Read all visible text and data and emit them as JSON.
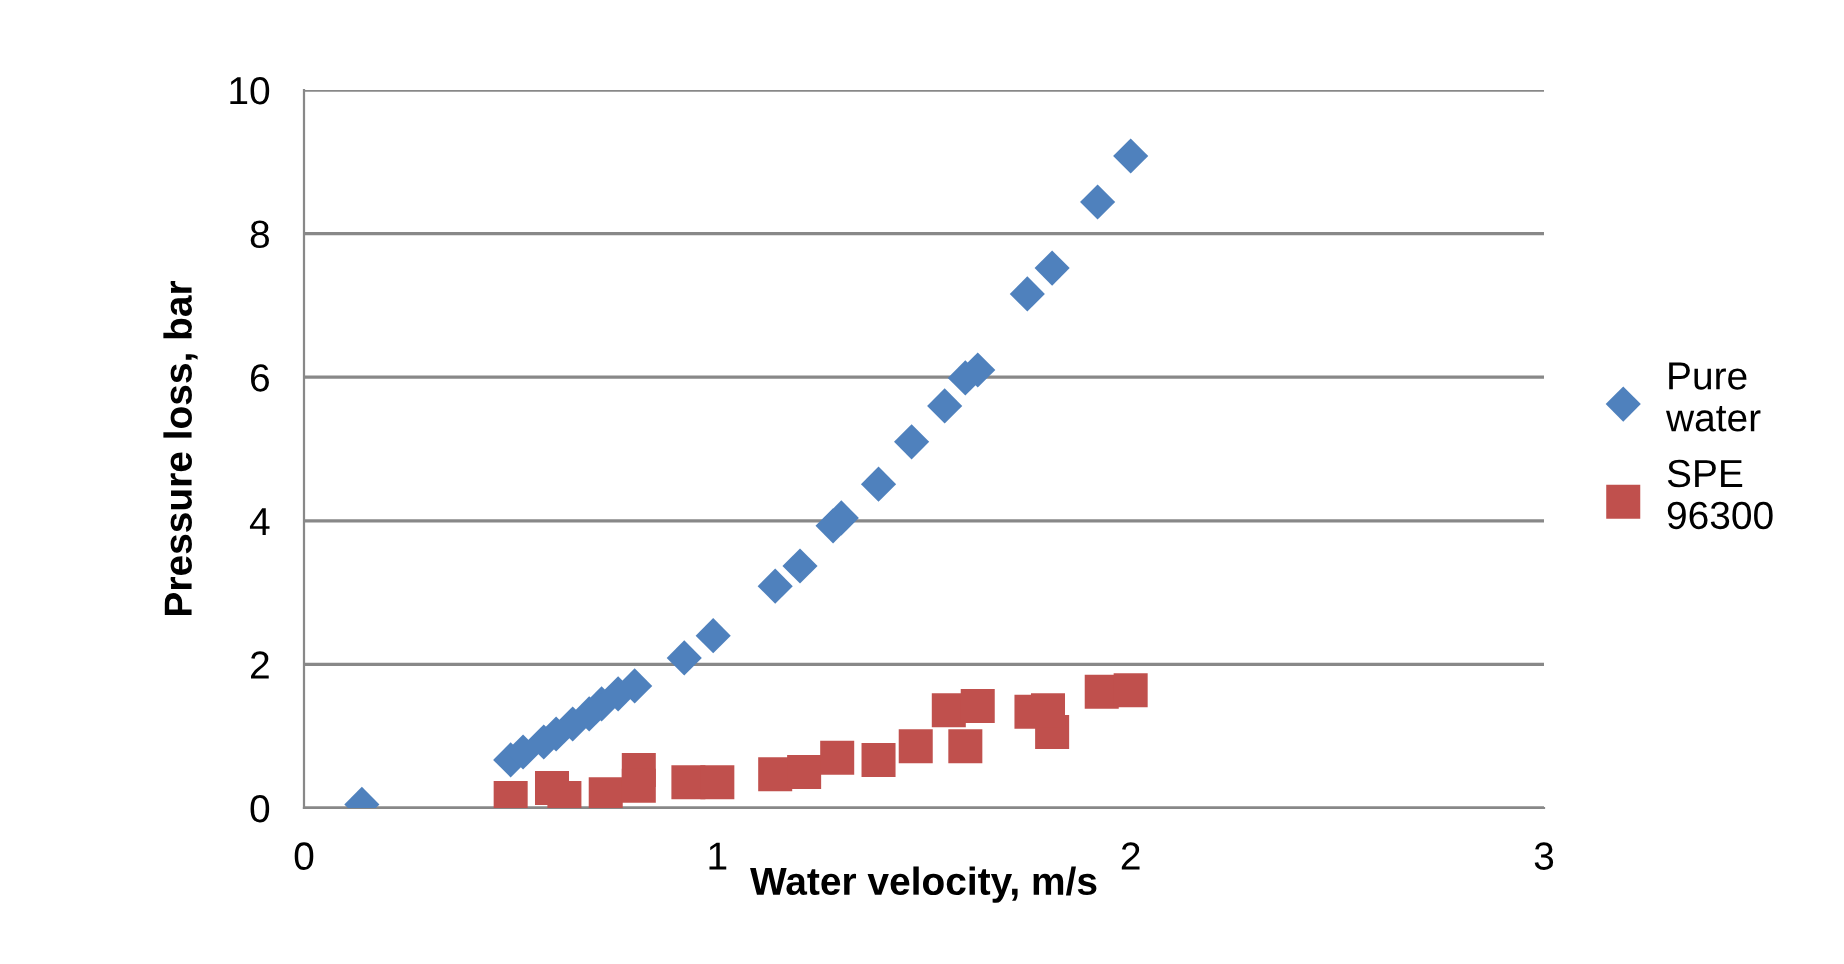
{
  "chart_data": {
    "type": "scatter",
    "xlabel": "Water velocity, m/s",
    "ylabel": "Pressure loss, bar",
    "xlim": [
      0,
      3
    ],
    "xticks": [
      0,
      1,
      2,
      3
    ],
    "ylim": [
      0,
      10
    ],
    "yticks": [
      0,
      2,
      4,
      6,
      8,
      10
    ],
    "grid": "y",
    "legend": "right",
    "series": [
      {
        "name": "Pure water",
        "color": "#4f81bd",
        "marker": "diamond",
        "x": [
          0.14,
          0.5,
          0.53,
          0.58,
          0.61,
          0.65,
          0.69,
          0.72,
          0.76,
          0.8,
          0.92,
          0.99,
          1.14,
          1.2,
          1.28,
          1.3,
          1.39,
          1.47,
          1.55,
          1.6,
          1.63,
          1.75,
          1.81,
          1.92,
          2.0
        ],
        "values": [
          0.05,
          0.67,
          0.78,
          0.92,
          1.03,
          1.17,
          1.31,
          1.45,
          1.59,
          1.7,
          2.09,
          2.4,
          3.09,
          3.37,
          3.93,
          4.04,
          4.51,
          5.1,
          5.6,
          5.99,
          6.1,
          7.16,
          7.52,
          8.44,
          9.08
        ]
      },
      {
        "name": "SPE 96300",
        "color": "#c0504d",
        "marker": "square",
        "x": [
          0.5,
          0.6,
          0.63,
          0.73,
          0.81,
          0.81,
          0.93,
          1.0,
          1.14,
          1.21,
          1.29,
          1.39,
          1.48,
          1.56,
          1.63,
          1.6,
          1.76,
          1.81,
          1.8,
          1.93,
          2.0
        ],
        "values": [
          0.14,
          0.28,
          0.14,
          0.19,
          0.53,
          0.31,
          0.36,
          0.36,
          0.47,
          0.5,
          0.7,
          0.67,
          0.86,
          1.36,
          1.42,
          0.86,
          1.34,
          1.06,
          1.36,
          1.62,
          1.64
        ]
      }
    ]
  }
}
